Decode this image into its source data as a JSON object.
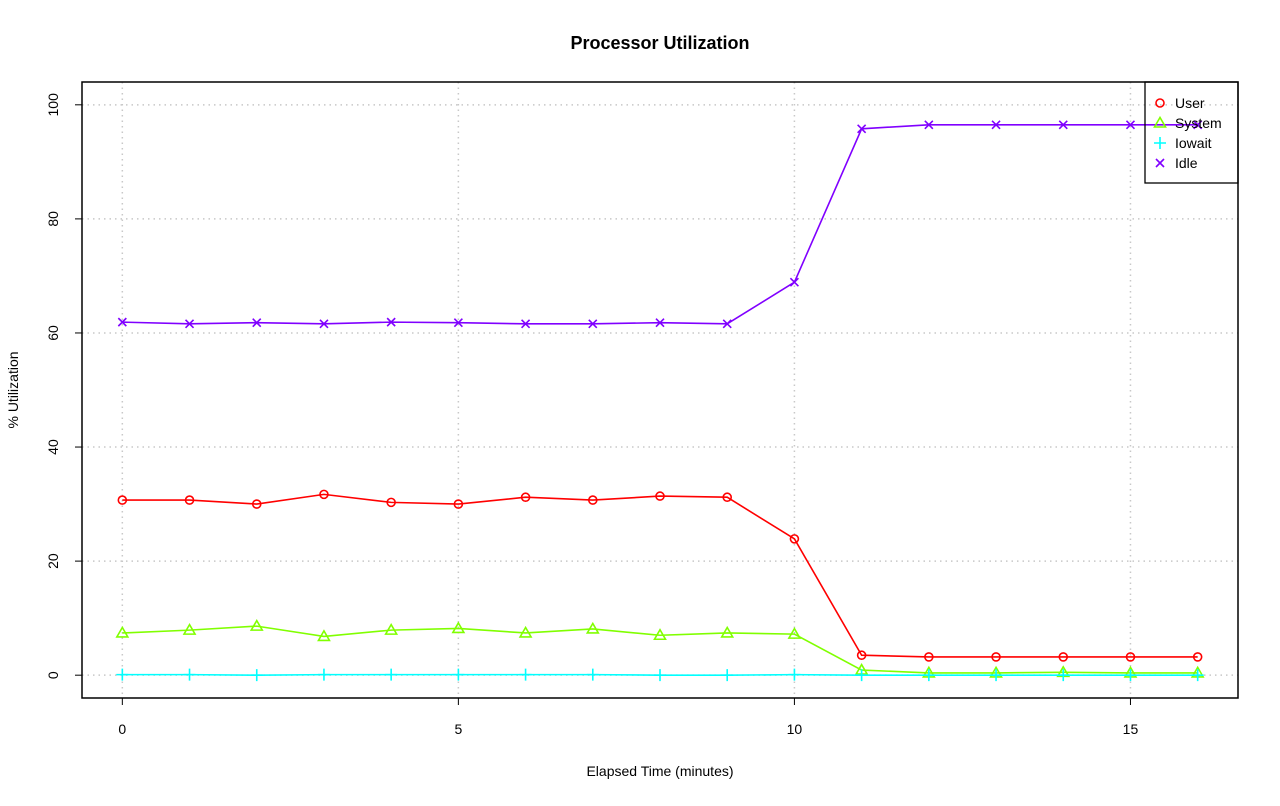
{
  "chart_data": {
    "type": "line",
    "title": "Processor Utilization",
    "xlabel": "Elapsed Time (minutes)",
    "ylabel": "% Utilization",
    "xlim": [
      -0.6,
      16.6
    ],
    "ylim": [
      -4,
      104
    ],
    "xticks": [
      0,
      5,
      10,
      15
    ],
    "yticks": [
      0,
      20,
      40,
      60,
      80,
      100
    ],
    "grid": true,
    "legend_position": "top-right",
    "x": [
      0,
      1,
      2,
      3,
      4,
      5,
      6,
      7,
      8,
      9,
      10,
      11,
      12,
      13,
      14,
      15,
      16
    ],
    "series": [
      {
        "name": "User",
        "color": "#ff0000",
        "marker": "circle",
        "values": [
          30.7,
          30.7,
          30.0,
          31.7,
          30.3,
          30.0,
          31.2,
          30.7,
          31.4,
          31.2,
          23.9,
          3.5,
          3.2,
          3.2,
          3.2,
          3.2,
          3.2
        ]
      },
      {
        "name": "System",
        "color": "#80ff00",
        "marker": "triangle",
        "values": [
          7.4,
          7.9,
          8.6,
          6.8,
          7.9,
          8.2,
          7.4,
          8.1,
          7.0,
          7.4,
          7.2,
          0.9,
          0.4,
          0.4,
          0.5,
          0.4,
          0.4
        ]
      },
      {
        "name": "Iowait",
        "color": "#00ffff",
        "marker": "plus",
        "values": [
          0.1,
          0.1,
          0.0,
          0.1,
          0.1,
          0.1,
          0.1,
          0.1,
          0.0,
          0.0,
          0.1,
          0.0,
          0.0,
          0.0,
          0.0,
          0.0,
          0.0
        ]
      },
      {
        "name": "Idle",
        "color": "#8000ff",
        "marker": "cross",
        "values": [
          61.9,
          61.6,
          61.8,
          61.6,
          61.9,
          61.8,
          61.6,
          61.6,
          61.8,
          61.6,
          68.9,
          95.8,
          96.5,
          96.5,
          96.5,
          96.5,
          96.5
        ]
      }
    ]
  }
}
